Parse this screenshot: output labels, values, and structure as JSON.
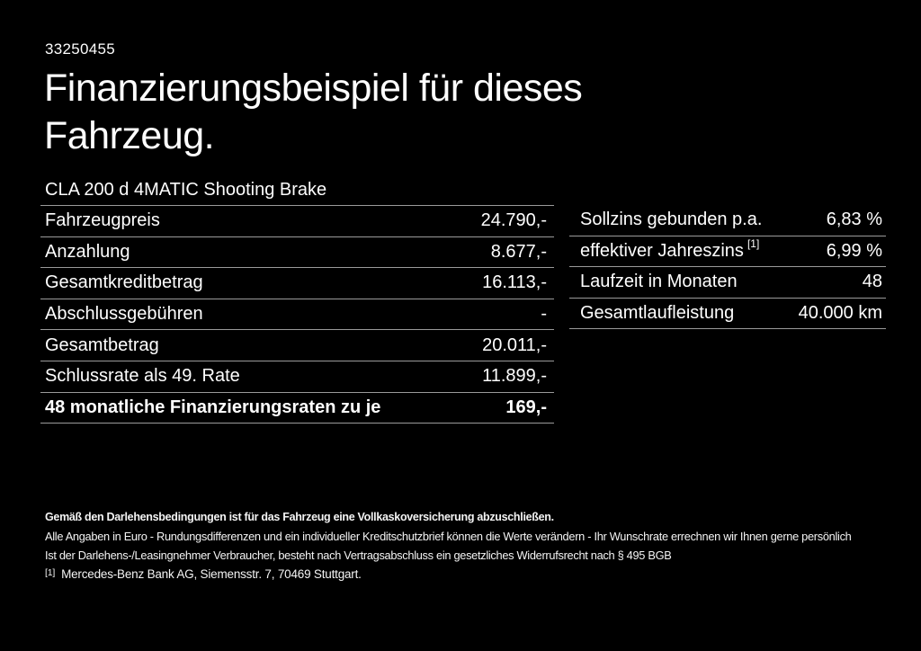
{
  "page": {
    "id_number": "33250455",
    "title_line1": "Finanzierungsbeispiel für dieses",
    "title_line2": "Fahrzeug.",
    "vehicle_name": "CLA 200 d 4MATIC Shooting Brake"
  },
  "finance_table": {
    "rows": [
      {
        "label": "Fahrzeugpreis",
        "value": "24.790,-"
      },
      {
        "label": "Anzahlung",
        "value": "8.677,-"
      },
      {
        "label": "Gesamtkreditbetrag",
        "value": "16.113,-"
      },
      {
        "label": "Abschlussgebühren",
        "value": "-"
      },
      {
        "label": "Gesamtbetrag",
        "value": "20.011,-"
      },
      {
        "label": "Schlussrate als 49. Rate",
        "value": "11.899,-"
      },
      {
        "label": "48 monatliche Finanzierungsraten zu je",
        "value": "169,-"
      }
    ]
  },
  "conditions_table": {
    "rows": [
      {
        "label": "Sollzins gebunden p.a.",
        "sup": "",
        "value": "6,83 %"
      },
      {
        "label": "effektiver Jahreszins",
        "sup": "[1]",
        "value": "6,99 %"
      },
      {
        "label": "Laufzeit in Monaten",
        "sup": "",
        "value": "48"
      },
      {
        "label": "Gesamtlaufleistung",
        "sup": "",
        "value": "40.000 km"
      }
    ]
  },
  "footer": {
    "bold_note": "Gemäß den Darlehensbedingungen ist für das Fahrzeug eine Vollkaskoversicherung abzuschließen.",
    "note_line1": "Alle Angaben in Euro - Rundungsdifferenzen und ein individueller Kreditschutzbrief können die Werte verändern - Ihr Wunschrate errechnen wir Ihnen gerne persönlich",
    "note_line2": "Ist der Darlehens-/Leasingnehmer Verbraucher, besteht nach Vertragsabschluss ein gesetzliches Widerrufsrecht nach § 495 BGB",
    "footnote_marker": "[1]",
    "footnote_text": "Mercedes-Benz Bank AG, Siemensstr. 7, 70469 Stuttgart."
  },
  "colors": {
    "background": "#000000",
    "text": "#ffffff",
    "divider": "#9a9a9a"
  }
}
